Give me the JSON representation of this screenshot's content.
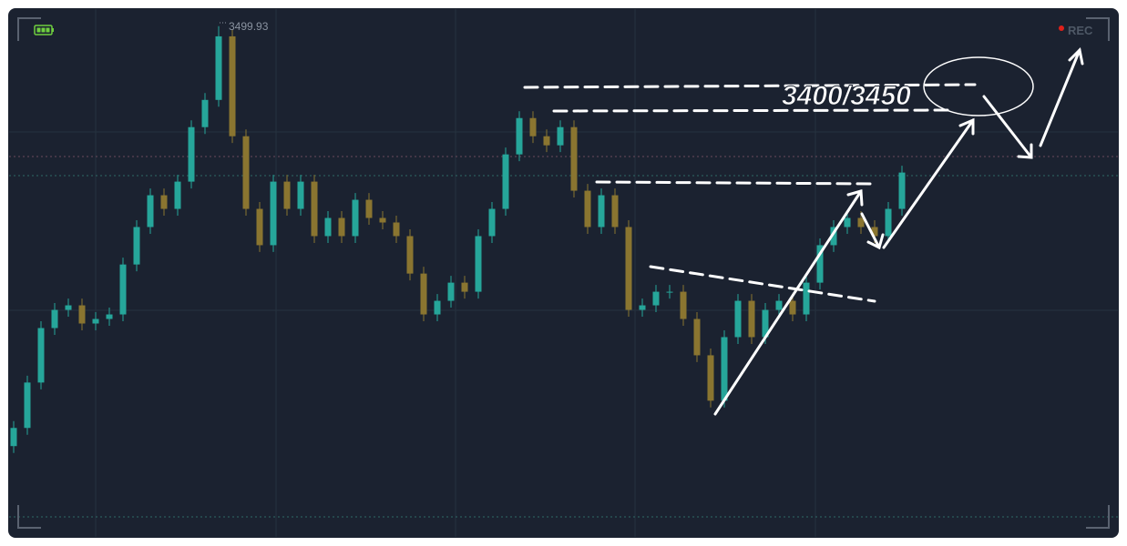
{
  "chart_data": {
    "type": "candlestick",
    "open": [
      3130,
      3146,
      3186,
      3234,
      3250,
      3254,
      3238,
      3242,
      3246,
      3290,
      3323,
      3351,
      3339,
      3363,
      3411,
      3435,
      3491,
      3403,
      3339,
      3307,
      3363,
      3339,
      3363,
      3315,
      3331,
      3315,
      3347,
      3331,
      3327,
      3315,
      3282,
      3246,
      3258,
      3274,
      3266,
      3315,
      3339,
      3387,
      3419,
      3403,
      3395,
      3411,
      3355,
      3323,
      3351,
      3323,
      3250,
      3254,
      3266,
      3266,
      3242,
      3210,
      3170,
      3226,
      3258,
      3226,
      3250,
      3258,
      3246,
      3274,
      3307,
      3323,
      3331,
      3323,
      3315,
      3339
    ],
    "high": [
      3152,
      3192,
      3240,
      3256,
      3260,
      3260,
      3248,
      3252,
      3296,
      3329,
      3357,
      3357,
      3369,
      3417,
      3441,
      3499.93,
      3497,
      3409,
      3345,
      3369,
      3369,
      3369,
      3369,
      3337,
      3337,
      3353,
      3353,
      3337,
      3333,
      3321,
      3288,
      3264,
      3280,
      3280,
      3321,
      3345,
      3393,
      3425,
      3425,
      3409,
      3417,
      3417,
      3361,
      3357,
      3357,
      3329,
      3260,
      3272,
      3272,
      3272,
      3248,
      3216,
      3232,
      3264,
      3264,
      3256,
      3264,
      3264,
      3280,
      3313,
      3329,
      3337,
      3337,
      3329,
      3345,
      3377
    ],
    "low": [
      3124,
      3140,
      3180,
      3228,
      3244,
      3232,
      3232,
      3236,
      3240,
      3284,
      3317,
      3333,
      3333,
      3357,
      3405,
      3429,
      3397,
      3333,
      3301,
      3301,
      3333,
      3333,
      3309,
      3309,
      3309,
      3309,
      3325,
      3321,
      3309,
      3276,
      3240,
      3240,
      3252,
      3260,
      3260,
      3309,
      3333,
      3381,
      3397,
      3389,
      3389,
      3349,
      3317,
      3317,
      3317,
      3244,
      3244,
      3248,
      3260,
      3236,
      3204,
      3164,
      3164,
      3220,
      3220,
      3220,
      3244,
      3240,
      3240,
      3268,
      3301,
      3317,
      3317,
      3309,
      3309,
      3333
    ],
    "close": [
      3146,
      3186,
      3234,
      3250,
      3254,
      3238,
      3242,
      3246,
      3290,
      3323,
      3351,
      3339,
      3363,
      3411,
      3435,
      3491,
      3403,
      3339,
      3307,
      3363,
      3339,
      3363,
      3315,
      3331,
      3315,
      3347,
      3331,
      3327,
      3315,
      3282,
      3246,
      3258,
      3274,
      3266,
      3315,
      3339,
      3387,
      3419,
      3403,
      3395,
      3411,
      3355,
      3323,
      3351,
      3323,
      3250,
      3254,
      3266,
      3266,
      3242,
      3210,
      3170,
      3226,
      3258,
      3226,
      3250,
      3258,
      3246,
      3274,
      3307,
      3323,
      3331,
      3323,
      3315,
      3339,
      3371
    ],
    "ylim": [
      3050,
      3515
    ],
    "up_color": "#26a69a",
    "down_color": "#8a7530",
    "annotations": [
      "3400/3450"
    ],
    "recording_label": "REC"
  }
}
